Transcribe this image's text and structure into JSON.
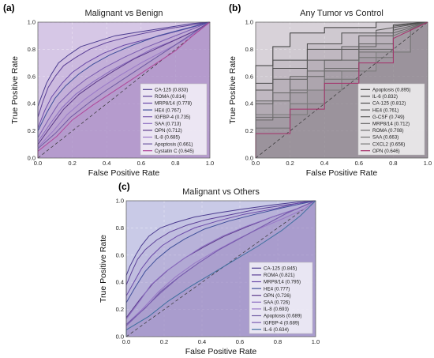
{
  "chart_data": [
    {
      "panel": "(a)",
      "type": "line",
      "title": "Malignant vs Benign",
      "xlabel": "False Positive Rate",
      "ylabel": "True Positive Rate",
      "xlim": [
        0,
        1
      ],
      "ylim": [
        0,
        1
      ],
      "ticks": [
        "0.0",
        "0.2",
        "0.4",
        "0.6",
        "0.8",
        "1.0"
      ],
      "grid": true,
      "legend_position": "bottom-right",
      "diagonal": true,
      "series": [
        {
          "name": "CA-125 (0.833)",
          "color": "#4b3b8f",
          "x": [
            0,
            0,
            0.02,
            0.05,
            0.08,
            0.12,
            0.18,
            0.25,
            0.35,
            0.45,
            0.6,
            0.75,
            0.9,
            1
          ],
          "y": [
            0,
            0.38,
            0.45,
            0.55,
            0.62,
            0.7,
            0.76,
            0.82,
            0.86,
            0.9,
            0.93,
            0.96,
            0.99,
            1
          ]
        },
        {
          "name": "ROMA (0.814)",
          "color": "#5a3e96",
          "x": [
            0,
            0,
            0.03,
            0.06,
            0.1,
            0.15,
            0.22,
            0.3,
            0.4,
            0.55,
            0.7,
            0.85,
            1
          ],
          "y": [
            0,
            0.3,
            0.42,
            0.52,
            0.6,
            0.68,
            0.74,
            0.8,
            0.85,
            0.9,
            0.94,
            0.97,
            1
          ]
        },
        {
          "name": "MRP8/14 (0.778)",
          "color": "#6a4aa8",
          "x": [
            0,
            0,
            0.04,
            0.08,
            0.14,
            0.2,
            0.28,
            0.38,
            0.5,
            0.65,
            0.8,
            0.92,
            1
          ],
          "y": [
            0,
            0.22,
            0.35,
            0.45,
            0.55,
            0.63,
            0.7,
            0.77,
            0.83,
            0.88,
            0.93,
            0.97,
            1
          ]
        },
        {
          "name": "HE4 (0.767)",
          "color": "#3f4f9a",
          "x": [
            0,
            0,
            0.05,
            0.1,
            0.16,
            0.24,
            0.32,
            0.42,
            0.55,
            0.7,
            0.85,
            1
          ],
          "y": [
            0,
            0.2,
            0.33,
            0.44,
            0.53,
            0.62,
            0.69,
            0.76,
            0.83,
            0.9,
            0.95,
            1
          ]
        },
        {
          "name": "IGFBP-4 (0.735)",
          "color": "#7a5cb0",
          "x": [
            0,
            0,
            0.06,
            0.12,
            0.2,
            0.28,
            0.38,
            0.5,
            0.62,
            0.76,
            0.9,
            1
          ],
          "y": [
            0,
            0.15,
            0.28,
            0.4,
            0.5,
            0.58,
            0.66,
            0.74,
            0.81,
            0.88,
            0.95,
            1
          ]
        },
        {
          "name": "SAA (0.713)",
          "color": "#8a6cc0",
          "x": [
            0,
            0,
            0.07,
            0.14,
            0.22,
            0.32,
            0.42,
            0.54,
            0.66,
            0.8,
            0.92,
            1
          ],
          "y": [
            0,
            0.12,
            0.25,
            0.37,
            0.47,
            0.56,
            0.64,
            0.72,
            0.8,
            0.87,
            0.94,
            1
          ]
        },
        {
          "name": "OPN (0.712)",
          "color": "#5c3a8a",
          "x": [
            0,
            0,
            0.08,
            0.15,
            0.24,
            0.34,
            0.44,
            0.56,
            0.68,
            0.8,
            0.92,
            1
          ],
          "y": [
            0,
            0.1,
            0.24,
            0.36,
            0.47,
            0.56,
            0.64,
            0.73,
            0.8,
            0.87,
            0.94,
            1
          ]
        },
        {
          "name": "IL-8 (0.685)",
          "color": "#9a7ac8",
          "x": [
            0,
            0,
            0.09,
            0.17,
            0.27,
            0.37,
            0.48,
            0.6,
            0.72,
            0.84,
            0.94,
            1
          ],
          "y": [
            0,
            0.08,
            0.2,
            0.32,
            0.43,
            0.52,
            0.61,
            0.7,
            0.78,
            0.86,
            0.94,
            1
          ]
        },
        {
          "name": "Apoptosis (0.661)",
          "color": "#6e5aa2",
          "x": [
            0,
            0,
            0.1,
            0.19,
            0.3,
            0.4,
            0.52,
            0.64,
            0.76,
            0.88,
            1
          ],
          "y": [
            0,
            0.07,
            0.18,
            0.3,
            0.41,
            0.5,
            0.6,
            0.7,
            0.8,
            0.9,
            1
          ]
        },
        {
          "name": "Cystatin C (0.645)",
          "color": "#b0479a",
          "x": [
            0,
            0,
            0.11,
            0.2,
            0.32,
            0.44,
            0.56,
            0.68,
            0.8,
            0.9,
            1
          ],
          "y": [
            0,
            0.05,
            0.16,
            0.28,
            0.39,
            0.49,
            0.59,
            0.69,
            0.79,
            0.9,
            1
          ]
        }
      ]
    },
    {
      "panel": "(b)",
      "type": "line",
      "title": "Any Tumor vs Control",
      "xlabel": "False Positive Rate",
      "ylabel": "True Positive Rate",
      "xlim": [
        0,
        1
      ],
      "ylim": [
        0,
        1
      ],
      "ticks": [
        "0.0",
        "0.2",
        "0.4",
        "0.6",
        "0.8",
        "1.0"
      ],
      "grid": true,
      "legend_position": "bottom-right",
      "diagonal": true,
      "series": [
        {
          "name": "Apoptosis (0.895)",
          "color": "#3a3a3a",
          "x": [
            0,
            0,
            0.1,
            0.1,
            0.2,
            0.2,
            0.4,
            0.4,
            0.7,
            0.7,
            1
          ],
          "y": [
            0,
            0.68,
            0.68,
            0.82,
            0.82,
            0.92,
            0.92,
            0.96,
            0.96,
            1,
            1
          ]
        },
        {
          "name": "IL-6 (0.832)",
          "color": "#4a4a4a",
          "x": [
            0,
            0,
            0.1,
            0.1,
            0.3,
            0.3,
            0.5,
            0.5,
            0.8,
            0.8,
            1
          ],
          "y": [
            0,
            0.55,
            0.55,
            0.72,
            0.72,
            0.84,
            0.84,
            0.92,
            0.92,
            0.98,
            1
          ]
        },
        {
          "name": "CA-125 (0.812)",
          "color": "#505050",
          "x": [
            0,
            0,
            0.1,
            0.1,
            0.3,
            0.3,
            0.6,
            0.6,
            0.8,
            0.8,
            1
          ],
          "y": [
            0,
            0.5,
            0.5,
            0.66,
            0.66,
            0.8,
            0.8,
            0.9,
            0.9,
            0.97,
            1
          ]
        },
        {
          "name": "HE4 (0.761)",
          "color": "#5a5a5a",
          "x": [
            0,
            0,
            0.1,
            0.1,
            0.3,
            0.3,
            0.5,
            0.5,
            0.7,
            0.7,
            1
          ],
          "y": [
            0,
            0.4,
            0.4,
            0.58,
            0.58,
            0.72,
            0.72,
            0.82,
            0.82,
            0.94,
            1
          ]
        },
        {
          "name": "G-CSF (0.749)",
          "color": "#606060",
          "x": [
            0,
            0,
            0.2,
            0.2,
            0.4,
            0.4,
            0.6,
            0.6,
            0.8,
            0.8,
            1
          ],
          "y": [
            0,
            0.42,
            0.42,
            0.6,
            0.6,
            0.72,
            0.72,
            0.84,
            0.84,
            0.94,
            1
          ]
        },
        {
          "name": "MRP8/14 (0.712)",
          "color": "#666666",
          "x": [
            0,
            0,
            0.1,
            0.1,
            0.3,
            0.3,
            0.6,
            0.6,
            0.8,
            0.8,
            1
          ],
          "y": [
            0,
            0.28,
            0.28,
            0.48,
            0.48,
            0.64,
            0.64,
            0.8,
            0.8,
            0.92,
            1
          ]
        },
        {
          "name": "ROMA (0.708)",
          "color": "#6c6c6c",
          "x": [
            0,
            0,
            0.2,
            0.2,
            0.4,
            0.4,
            0.6,
            0.6,
            0.9,
            0.9,
            1
          ],
          "y": [
            0,
            0.3,
            0.3,
            0.5,
            0.5,
            0.66,
            0.66,
            0.78,
            0.78,
            0.95,
            1
          ]
        },
        {
          "name": "SAA (0.663)",
          "color": "#737373",
          "x": [
            0,
            0,
            0.2,
            0.2,
            0.4,
            0.4,
            0.6,
            0.6,
            0.8,
            0.8,
            1
          ],
          "y": [
            0,
            0.22,
            0.22,
            0.4,
            0.4,
            0.58,
            0.58,
            0.74,
            0.74,
            0.9,
            1
          ]
        },
        {
          "name": "CXCL2 (0.656)",
          "color": "#7a7a7a",
          "x": [
            0,
            0,
            0.3,
            0.3,
            0.5,
            0.5,
            0.7,
            0.7,
            0.9,
            0.9,
            1
          ],
          "y": [
            0,
            0.32,
            0.32,
            0.5,
            0.5,
            0.64,
            0.64,
            0.78,
            0.78,
            0.94,
            1
          ]
        },
        {
          "name": "OPN (0.646)",
          "color": "#a5306a",
          "x": [
            0,
            0,
            0.2,
            0.2,
            0.4,
            0.4,
            0.6,
            0.6,
            0.8,
            0.8,
            1
          ],
          "y": [
            0,
            0.18,
            0.18,
            0.36,
            0.36,
            0.55,
            0.55,
            0.7,
            0.7,
            0.88,
            1
          ]
        }
      ]
    },
    {
      "panel": "(c)",
      "type": "line",
      "title": "Malignant vs Others",
      "xlabel": "False Positive Rate",
      "ylabel": "True Positive Rate",
      "xlim": [
        0,
        1
      ],
      "ylim": [
        0,
        1
      ],
      "ticks": [
        "0.0",
        "0.2",
        "0.4",
        "0.6",
        "0.8",
        "1.0"
      ],
      "grid": true,
      "legend_position": "bottom-right",
      "diagonal": true,
      "series": [
        {
          "name": "CA-125 (0.845)",
          "color": "#4b3b8f",
          "x": [
            0,
            0,
            0.02,
            0.05,
            0.08,
            0.12,
            0.18,
            0.26,
            0.36,
            0.48,
            0.62,
            0.78,
            0.9,
            1
          ],
          "y": [
            0,
            0.45,
            0.52,
            0.6,
            0.67,
            0.74,
            0.8,
            0.84,
            0.88,
            0.91,
            0.94,
            0.97,
            0.99,
            1
          ]
        },
        {
          "name": "ROMA (0.821)",
          "color": "#5a3e96",
          "x": [
            0,
            0,
            0.03,
            0.06,
            0.1,
            0.16,
            0.23,
            0.32,
            0.42,
            0.56,
            0.7,
            0.85,
            1
          ],
          "y": [
            0,
            0.38,
            0.48,
            0.57,
            0.64,
            0.71,
            0.77,
            0.82,
            0.86,
            0.9,
            0.94,
            0.97,
            1
          ]
        },
        {
          "name": "MRP8/14 (0.795)",
          "color": "#6a4aa8",
          "x": [
            0,
            0,
            0.04,
            0.08,
            0.13,
            0.19,
            0.27,
            0.36,
            0.48,
            0.62,
            0.78,
            0.9,
            1
          ],
          "y": [
            0,
            0.3,
            0.4,
            0.5,
            0.59,
            0.67,
            0.74,
            0.8,
            0.85,
            0.9,
            0.94,
            0.98,
            1
          ]
        },
        {
          "name": "HE4 (0.777)",
          "color": "#3f4f9a",
          "x": [
            0,
            0,
            0.05,
            0.1,
            0.16,
            0.23,
            0.31,
            0.41,
            0.54,
            0.68,
            0.83,
            1
          ],
          "y": [
            0,
            0.25,
            0.37,
            0.48,
            0.57,
            0.65,
            0.72,
            0.79,
            0.85,
            0.9,
            0.95,
            1
          ]
        },
        {
          "name": "OPN (0.726)",
          "color": "#5c3a8a",
          "x": [
            0,
            0,
            0.07,
            0.14,
            0.22,
            0.31,
            0.41,
            0.52,
            0.64,
            0.77,
            0.9,
            1
          ],
          "y": [
            0,
            0.14,
            0.27,
            0.39,
            0.49,
            0.58,
            0.66,
            0.74,
            0.81,
            0.88,
            0.94,
            1
          ]
        },
        {
          "name": "SAA (0.726)",
          "color": "#8a6cc0",
          "x": [
            0,
            0,
            0.07,
            0.13,
            0.21,
            0.3,
            0.4,
            0.51,
            0.63,
            0.77,
            0.9,
            1
          ],
          "y": [
            0,
            0.13,
            0.26,
            0.38,
            0.48,
            0.57,
            0.66,
            0.74,
            0.81,
            0.88,
            0.94,
            1
          ]
        },
        {
          "name": "IL-8 (0.693)",
          "color": "#9a7ac8",
          "x": [
            0,
            0,
            0.09,
            0.17,
            0.26,
            0.36,
            0.47,
            0.59,
            0.71,
            0.83,
            0.94,
            1
          ],
          "y": [
            0,
            0.09,
            0.21,
            0.33,
            0.44,
            0.54,
            0.63,
            0.72,
            0.8,
            0.87,
            0.94,
            1
          ]
        },
        {
          "name": "Apoptosis (0.689)",
          "color": "#6e5aa2",
          "x": [
            0,
            0,
            0.1,
            0.18,
            0.28,
            0.38,
            0.49,
            0.61,
            0.73,
            0.85,
            1
          ],
          "y": [
            0,
            0.09,
            0.21,
            0.33,
            0.44,
            0.54,
            0.64,
            0.73,
            0.82,
            0.91,
            1
          ]
        },
        {
          "name": "IGFBP-4 (0.689)",
          "color": "#7a5cb0",
          "x": [
            0,
            0,
            0.09,
            0.18,
            0.28,
            0.38,
            0.49,
            0.61,
            0.73,
            0.85,
            1
          ],
          "y": [
            0,
            0.08,
            0.2,
            0.32,
            0.44,
            0.54,
            0.64,
            0.73,
            0.82,
            0.91,
            1
          ]
        },
        {
          "name": "IL-6 (0.634)",
          "color": "#3f6f9f",
          "x": [
            0,
            0,
            0.12,
            0.22,
            0.34,
            0.46,
            0.58,
            0.7,
            0.82,
            0.92,
            1
          ],
          "y": [
            0,
            0.05,
            0.15,
            0.26,
            0.37,
            0.47,
            0.57,
            0.67,
            0.78,
            0.89,
            1
          ]
        }
      ]
    }
  ]
}
